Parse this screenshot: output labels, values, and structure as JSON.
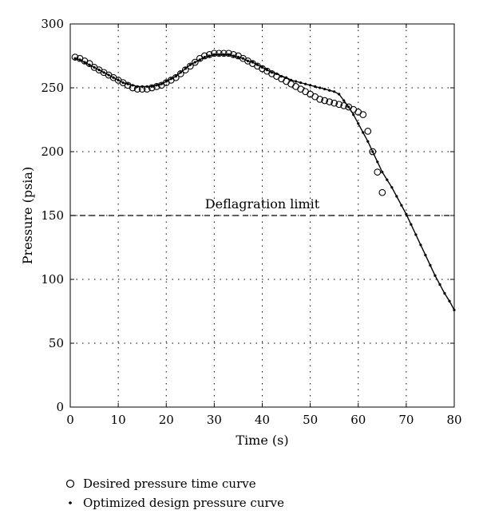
{
  "chart_data": {
    "type": "line",
    "xlabel": "Time (s)",
    "ylabel": "Pressure (psia)",
    "xlim": [
      0,
      80
    ],
    "ylim": [
      0,
      300
    ],
    "xticks": [
      0,
      10,
      20,
      30,
      40,
      50,
      60,
      70,
      80
    ],
    "yticks": [
      0,
      50,
      100,
      150,
      200,
      250,
      300
    ],
    "grid": true,
    "legend_position": "bottom",
    "annotations": [
      {
        "text": "Deflagration limit",
        "x": 40,
        "y": 150,
        "line_y": 150
      }
    ],
    "series": [
      {
        "name": "Desired pressure time curve",
        "marker": "open-circle",
        "x": [
          1,
          2,
          3,
          4,
          5,
          6,
          7,
          8,
          9,
          10,
          11,
          12,
          13,
          14,
          15,
          16,
          17,
          18,
          19,
          20,
          21,
          22,
          23,
          24,
          25,
          26,
          27,
          28,
          29,
          30,
          31,
          32,
          33,
          34,
          35,
          36,
          37,
          38,
          39,
          40,
          41,
          42,
          43,
          44,
          45,
          46,
          47,
          48,
          49,
          50,
          51,
          52,
          53,
          54,
          55,
          56,
          57,
          58,
          59,
          60,
          61,
          62,
          63,
          64,
          65
        ],
        "y": [
          274,
          273,
          271,
          269,
          266,
          264,
          262,
          260,
          258,
          256,
          254,
          252,
          250,
          249,
          249,
          249,
          250,
          251,
          252,
          254,
          256,
          258,
          261,
          264,
          267,
          270,
          273,
          275,
          276,
          277,
          277,
          277,
          277,
          276,
          275,
          273,
          271,
          269,
          267,
          265,
          263,
          261,
          259,
          257,
          255,
          253,
          251,
          249,
          247,
          245,
          243,
          241,
          240,
          239,
          238,
          237,
          236,
          235,
          233,
          231,
          229,
          216,
          200,
          184,
          168
        ]
      },
      {
        "name": "Optimized design pressure curve",
        "marker": "dot",
        "x": [
          1,
          2,
          3,
          4,
          5,
          6,
          7,
          8,
          9,
          10,
          11,
          12,
          13,
          14,
          15,
          16,
          17,
          18,
          19,
          20,
          21,
          22,
          23,
          24,
          25,
          26,
          27,
          28,
          29,
          30,
          31,
          32,
          33,
          34,
          35,
          36,
          37,
          38,
          39,
          40,
          41,
          42,
          43,
          44,
          45,
          46,
          47,
          48,
          49,
          50,
          51,
          52,
          53,
          54,
          55,
          56,
          57,
          58,
          59,
          60,
          61,
          62,
          63,
          64,
          65,
          66,
          67,
          68,
          69,
          70,
          71,
          72,
          73,
          74,
          75,
          76,
          77,
          78,
          79,
          80
        ],
        "y": [
          273,
          272,
          270,
          268,
          266,
          264,
          262,
          260,
          258,
          256,
          254,
          253,
          252,
          251,
          251,
          251,
          251,
          252,
          253,
          255,
          257,
          259,
          262,
          265,
          268,
          270,
          272,
          274,
          275,
          276,
          276,
          276,
          276,
          275,
          274,
          273,
          271,
          270,
          268,
          266,
          264,
          262,
          261,
          259,
          258,
          256,
          255,
          254,
          253,
          252,
          251,
          250,
          249,
          248,
          247,
          245,
          240,
          235,
          229,
          222,
          215,
          208,
          200,
          192,
          184,
          178,
          172,
          165,
          158,
          151,
          143,
          135,
          127,
          119,
          111,
          103,
          96,
          89,
          83,
          76
        ]
      }
    ]
  }
}
